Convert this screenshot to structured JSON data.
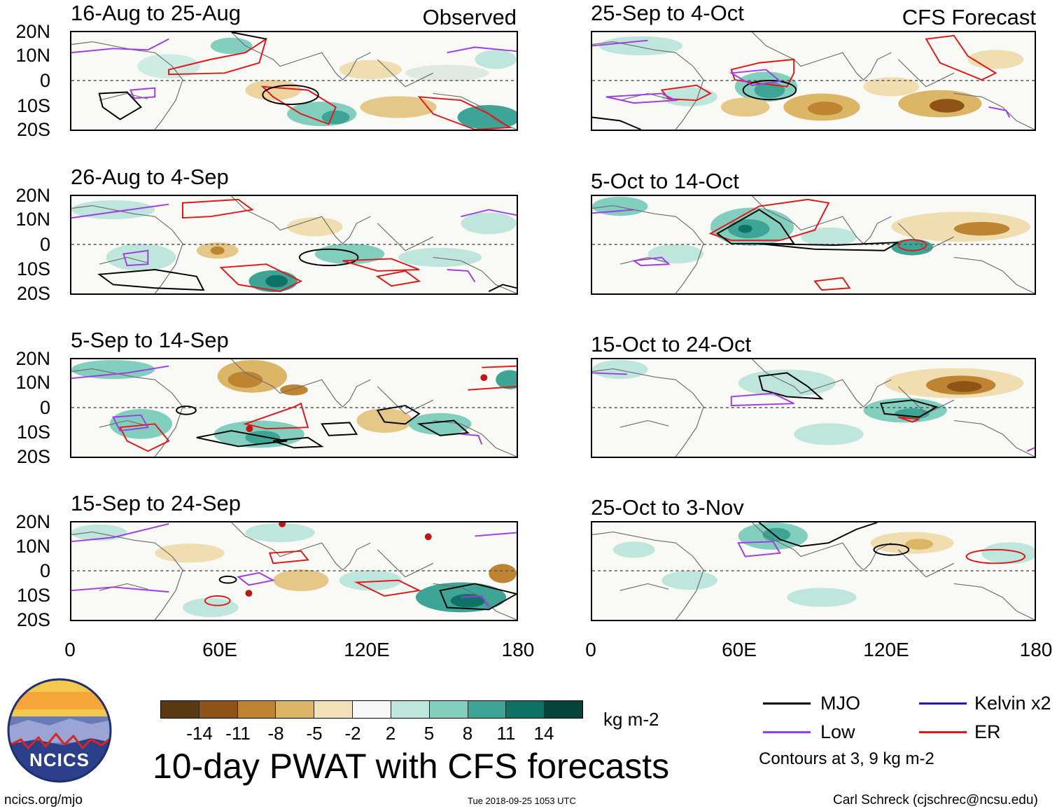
{
  "panels": [
    {
      "date": "16-Aug to 25-Aug",
      "tag": "Observed"
    },
    {
      "date": "26-Aug to 4-Sep",
      "tag": ""
    },
    {
      "date": "5-Sep to 14-Sep",
      "tag": ""
    },
    {
      "date": "15-Sep to 24-Sep",
      "tag": ""
    },
    {
      "date": "25-Sep to 4-Oct",
      "tag": "CFS Forecast"
    },
    {
      "date": "5-Oct to 14-Oct",
      "tag": ""
    },
    {
      "date": "15-Oct to 24-Oct",
      "tag": ""
    },
    {
      "date": "25-Oct to 3-Nov",
      "tag": ""
    }
  ],
  "axes": {
    "lat_labels": [
      "20N",
      "10N",
      "0",
      "10S",
      "20S"
    ],
    "lon_labels": [
      "0",
      "60E",
      "120E",
      "180"
    ]
  },
  "colorbar": {
    "colors": [
      "#5a3a10",
      "#8f5415",
      "#be8432",
      "#dcb667",
      "#f3e2b8",
      "#f7f7f7",
      "#bfe6dc",
      "#82cfbf",
      "#3ea596",
      "#0e7266",
      "#05433d"
    ],
    "labels": [
      "-14",
      "-11",
      "-8",
      "-5",
      "-2",
      "2",
      "5",
      "8",
      "11",
      "14"
    ],
    "units": "kg m-2"
  },
  "title": "10-day PWAT with CFS forecasts",
  "legend": {
    "items": [
      {
        "label": "MJO",
        "color": "#000000"
      },
      {
        "label": "Kelvin x2",
        "color": "#1a1ad6"
      },
      {
        "label": "Low",
        "color": "#a23be6"
      },
      {
        "label": "ER",
        "color": "#e01818"
      }
    ],
    "contours_note": "Contours at 3, 9 kg m-2"
  },
  "logo": {
    "text": "NCICS"
  },
  "footer": {
    "url": "ncics.org/mjo",
    "timestamp": "Tue 2018-09-25 1053 UTC",
    "credit": "Carl Schreck (cjschrec@ncsu.edu)"
  }
}
